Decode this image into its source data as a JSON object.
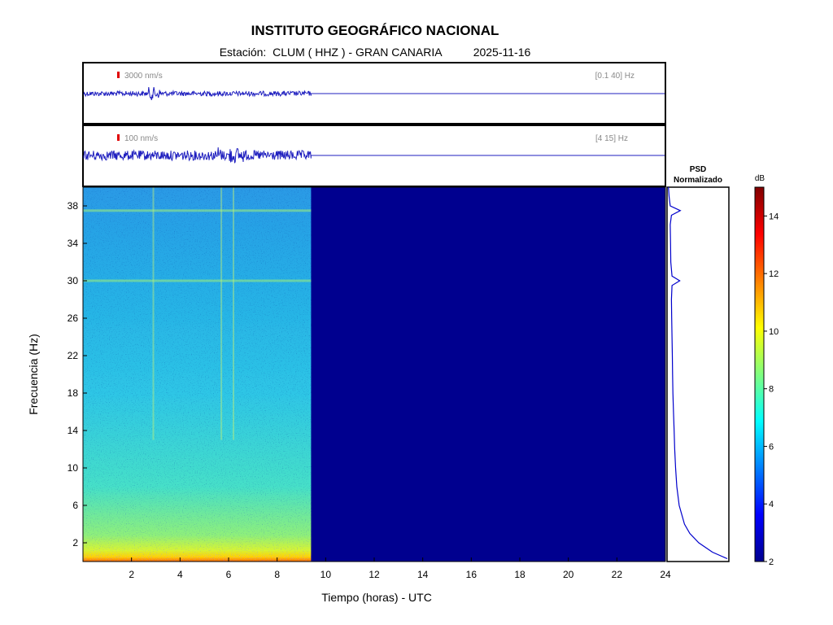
{
  "header": {
    "title": "INSTITUTO GEOGRÁFICO NACIONAL",
    "station_label": "Estación:",
    "station": "CLUM ( HHZ ) - GRAN CANARIA",
    "date": "2025-11-16"
  },
  "chart_data": [
    {
      "type": "line",
      "name": "seismogram-broadband",
      "scale_label": "3000 nm/s",
      "band_label": "[0.1 40] Hz",
      "x_range": [
        0,
        24
      ],
      "data_end_hour": 9.4,
      "colors": {
        "trace": "#1f1fbf",
        "scale_marker": "#e00000"
      }
    },
    {
      "type": "line",
      "name": "seismogram-filtered",
      "scale_label": "100 nm/s",
      "band_label": "[4 15] Hz",
      "x_range": [
        0,
        24
      ],
      "data_end_hour": 9.4,
      "colors": {
        "trace": "#1f1fbf",
        "scale_marker": "#e00000"
      }
    },
    {
      "type": "heatmap",
      "name": "spectrogram",
      "xlabel": "Tiempo (horas) - UTC",
      "ylabel": "Frecuencia  (Hz)",
      "xlim": [
        0,
        24
      ],
      "ylim": [
        0,
        40
      ],
      "x_ticks": [
        2,
        4,
        6,
        8,
        10,
        12,
        14,
        16,
        18,
        20,
        22,
        24
      ],
      "y_ticks": [
        2,
        6,
        10,
        14,
        18,
        22,
        26,
        30,
        34,
        38
      ],
      "data_end_hour": 9.4,
      "no_data_color": "#00008f",
      "bands_hz": [
        37.5,
        30.0
      ],
      "events_hours": [
        2.9,
        6.2,
        5.7
      ]
    },
    {
      "type": "line",
      "name": "psd",
      "title_line1": "PSD",
      "title_line2": "Normalizado",
      "freqs": [
        0.3,
        1,
        2,
        3,
        4,
        6,
        8,
        10,
        12,
        14,
        16,
        18,
        20,
        22,
        24,
        26,
        28,
        29.5,
        30,
        30.5,
        32,
        34,
        36,
        37,
        37.5,
        38,
        39,
        40
      ],
      "values": [
        1.0,
        0.75,
        0.52,
        0.37,
        0.28,
        0.19,
        0.15,
        0.13,
        0.115,
        0.105,
        0.095,
        0.085,
        0.08,
        0.075,
        0.07,
        0.065,
        0.06,
        0.07,
        0.2,
        0.07,
        0.05,
        0.045,
        0.04,
        0.06,
        0.21,
        0.04,
        0.02,
        0.01
      ]
    },
    {
      "type": "heatmap",
      "name": "colorbar",
      "unit": "dB",
      "range": [
        2,
        15
      ],
      "ticks": [
        2,
        4,
        6,
        8,
        10,
        12,
        14
      ]
    }
  ]
}
